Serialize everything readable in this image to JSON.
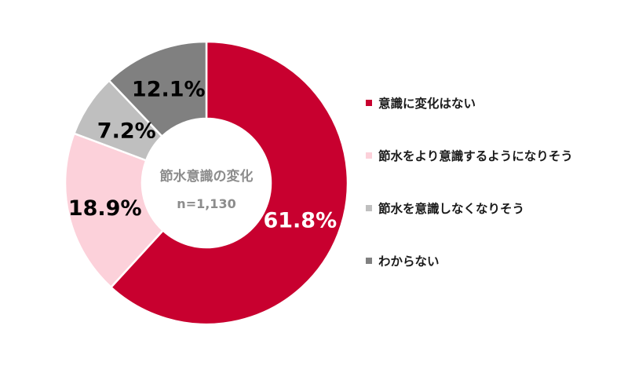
{
  "chart_data": {
    "type": "pie",
    "donut": true,
    "categories": [
      "意識に変化はない",
      "節水をより意識するようになりそう",
      "節水を意識しなくなりそう",
      "わからない"
    ],
    "values": [
      61.8,
      18.9,
      7.2,
      12.1
    ],
    "value_labels": [
      "61.8%",
      "18.9%",
      "7.2%",
      "12.1%"
    ],
    "colors": [
      "#c8002f",
      "#fcd1da",
      "#bfbfbf",
      "#808080"
    ],
    "label_colors": [
      "#ffffff",
      "#000000",
      "#000000",
      "#000000"
    ],
    "center_title": "節水意識の変化",
    "center_note": "n=1,130",
    "legend_position": "right",
    "start": "12 o'clock",
    "direction": "clockwise"
  }
}
